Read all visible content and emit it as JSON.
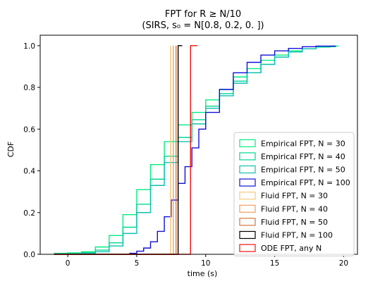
{
  "chart_data": {
    "type": "line",
    "title_line1": "FPT for R ≥ N/10",
    "title_line2": "(SIRS, s₀ = N[0.8, 0.2, 0. ])",
    "xlabel": "time (s)",
    "ylabel": "CDF",
    "xlim": [
      -2,
      21
    ],
    "ylim": [
      0,
      1.05
    ],
    "xticks": [
      0,
      5,
      10,
      15,
      20
    ],
    "yticks": [
      0.0,
      0.2,
      0.4,
      0.6,
      0.8,
      1.0
    ],
    "grid": false,
    "legend_position": "lower-right",
    "series": [
      {
        "name": "Empirical FPT, N = 30",
        "style": "step",
        "color": "#00ee80",
        "x": [
          -1,
          0,
          1,
          2,
          3,
          4,
          5,
          6,
          7,
          8,
          9,
          10,
          11,
          12,
          13,
          14,
          15,
          16,
          17,
          18,
          19,
          19.6
        ],
        "y": [
          0.005,
          0.007,
          0.012,
          0.035,
          0.09,
          0.19,
          0.31,
          0.43,
          0.54,
          0.62,
          0.68,
          0.74,
          0.79,
          0.85,
          0.89,
          0.93,
          0.955,
          0.975,
          0.985,
          0.993,
          0.998,
          1.0
        ]
      },
      {
        "name": "Empirical FPT, N = 40",
        "style": "step",
        "color": "#00d595",
        "x": [
          -1,
          0,
          1,
          2,
          3,
          4,
          5,
          6,
          7,
          8,
          9,
          10,
          11,
          12,
          13,
          14,
          15,
          16,
          17,
          18,
          19.4
        ],
        "y": [
          0.003,
          0.004,
          0.008,
          0.02,
          0.055,
          0.13,
          0.24,
          0.36,
          0.47,
          0.56,
          0.645,
          0.71,
          0.77,
          0.83,
          0.87,
          0.91,
          0.945,
          0.97,
          0.985,
          0.995,
          1.0
        ]
      },
      {
        "name": "Empirical FPT, N = 50",
        "style": "step",
        "color": "#10c0b0",
        "x": [
          0,
          1,
          2,
          3,
          4,
          5,
          6,
          7,
          8,
          9,
          10,
          11,
          12,
          13,
          14,
          15,
          16,
          17,
          18,
          19.2
        ],
        "y": [
          0.0,
          0.004,
          0.012,
          0.04,
          0.1,
          0.2,
          0.33,
          0.44,
          0.54,
          0.625,
          0.7,
          0.76,
          0.82,
          0.87,
          0.91,
          0.945,
          0.97,
          0.985,
          0.995,
          1.0
        ]
      },
      {
        "name": "Empirical FPT, N = 100",
        "style": "step",
        "color": "#1010d8",
        "x": [
          3.5,
          4.5,
          5,
          5.5,
          6,
          6.5,
          7,
          7.5,
          8,
          8.5,
          9,
          9.5,
          10,
          11,
          12,
          13,
          14,
          15,
          16,
          17,
          18,
          19.4
        ],
        "y": [
          0.0,
          0.005,
          0.015,
          0.03,
          0.06,
          0.11,
          0.18,
          0.26,
          0.34,
          0.42,
          0.51,
          0.6,
          0.68,
          0.79,
          0.87,
          0.92,
          0.955,
          0.975,
          0.987,
          0.995,
          0.998,
          1.0
        ]
      },
      {
        "name": "Fluid FPT, N = 30",
        "style": "vstep",
        "color": "#f5c87a",
        "x0": -1,
        "xstep": 7.45,
        "xend": 7.45
      },
      {
        "name": "Fluid FPT, N = 40",
        "style": "vstep",
        "color": "#f0a060",
        "x0": -1,
        "xstep": 7.65,
        "xend": 7.65
      },
      {
        "name": "Fluid FPT, N = 50",
        "style": "vstep",
        "color": "#d07840",
        "x0": -1,
        "xstep": 7.85,
        "xend": 7.85
      },
      {
        "name": "Fluid FPT, N = 100",
        "style": "vstep",
        "color": "#000000",
        "x0": -1,
        "xstep": 8.0,
        "xend": 8.3
      },
      {
        "name": "ODE FPT, any N",
        "style": "vstep",
        "color": "#ee1010",
        "x0": -1,
        "xstep": 8.9,
        "xend": 9.4
      }
    ]
  }
}
